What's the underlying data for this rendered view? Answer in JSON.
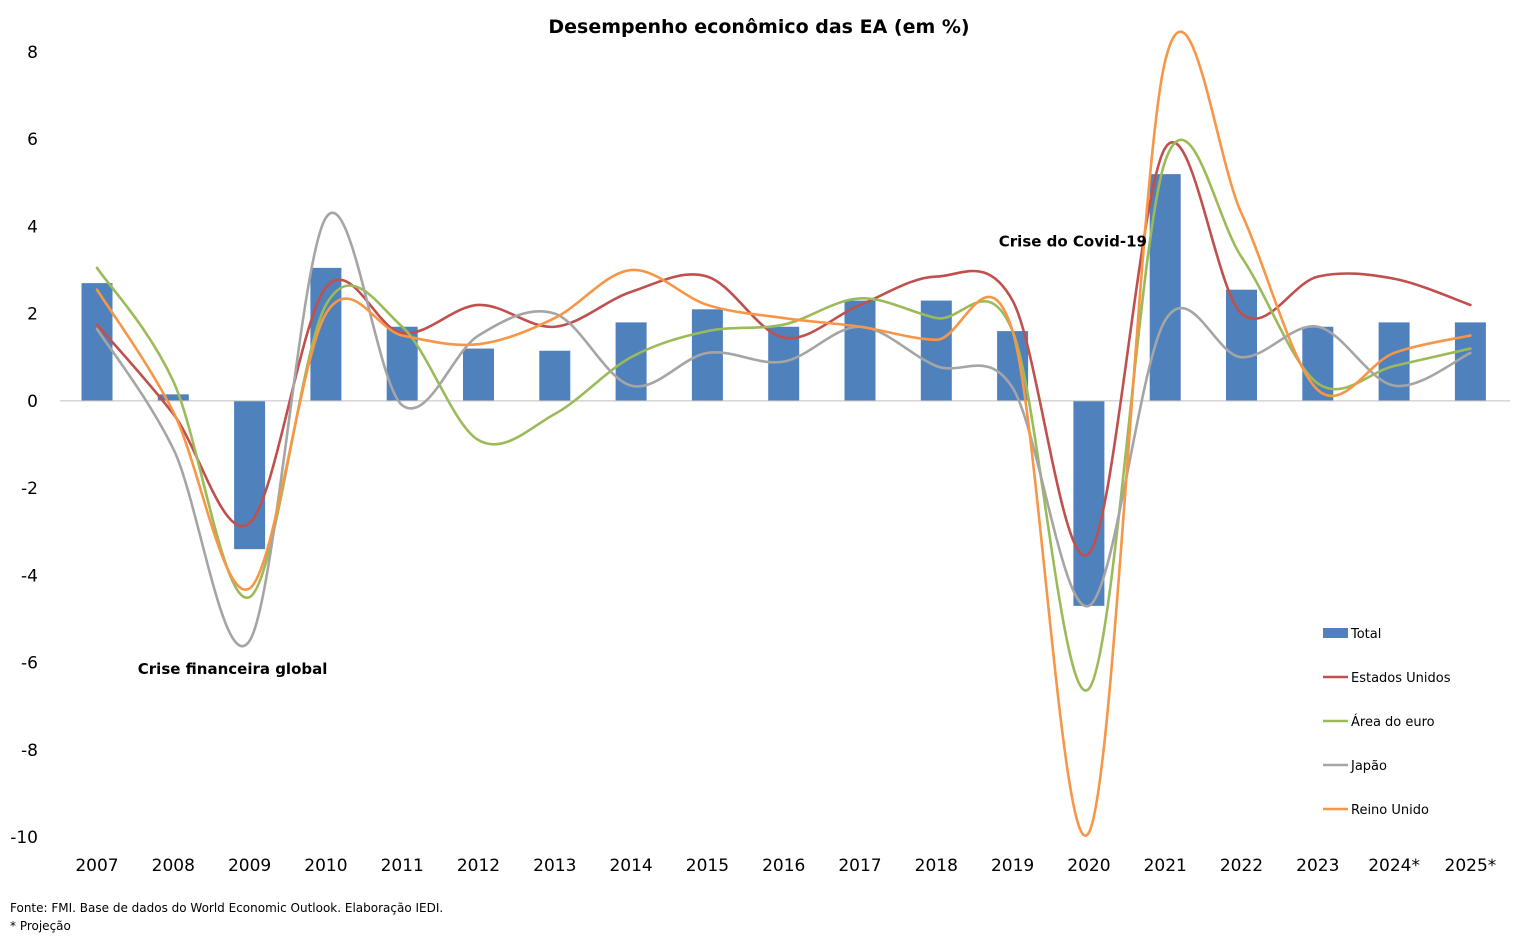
{
  "chart_data": {
    "type": "bar",
    "title": "Desempenho econômico das EA (em %)",
    "categories": [
      "2007",
      "2008",
      "2009",
      "2010",
      "2011",
      "2012",
      "2013",
      "2014",
      "2015",
      "2016",
      "2017",
      "2018",
      "2019",
      "2020",
      "2021",
      "2022",
      "2023",
      "2024*",
      "2025*"
    ],
    "ylim": [
      -10,
      8
    ],
    "yticks": [
      8,
      6,
      4,
      2,
      0,
      -2,
      -4,
      -6,
      -8,
      -10
    ],
    "grid": false,
    "legend_position": "right",
    "series": [
      {
        "name": "Total",
        "type": "bar",
        "color": "#4F81BD",
        "values": [
          2.7,
          0.15,
          -3.4,
          3.05,
          1.7,
          1.2,
          1.15,
          1.8,
          2.1,
          1.7,
          2.3,
          2.3,
          1.6,
          -4.7,
          5.2,
          2.55,
          1.7,
          1.8,
          1.8
        ]
      },
      {
        "name": "Estados Unidos",
        "type": "line",
        "color": "#C0504D",
        "values": [
          1.75,
          -0.3,
          -2.8,
          2.6,
          1.55,
          2.2,
          1.7,
          2.5,
          2.85,
          1.45,
          2.2,
          2.85,
          2.3,
          -3.5,
          5.8,
          2.0,
          2.85,
          2.8,
          2.2
        ]
      },
      {
        "name": "Área do euro",
        "type": "line",
        "color": "#9BBB59",
        "values": [
          3.05,
          0.45,
          -4.5,
          2.2,
          1.7,
          -0.9,
          -0.3,
          1.0,
          1.6,
          1.75,
          2.35,
          1.9,
          1.6,
          -6.6,
          5.5,
          3.3,
          0.4,
          0.8,
          1.2
        ]
      },
      {
        "name": "Japão",
        "type": "line",
        "color": "#A5A5A5",
        "values": [
          1.65,
          -1.1,
          -5.5,
          4.2,
          -0.1,
          1.5,
          2.0,
          0.35,
          1.1,
          0.9,
          1.7,
          0.8,
          0.3,
          -4.7,
          1.85,
          1.0,
          1.7,
          0.35,
          1.1
        ]
      },
      {
        "name": "Reino Unido",
        "type": "line",
        "color": "#F79646",
        "values": [
          2.55,
          -0.25,
          -4.3,
          2.0,
          1.5,
          1.3,
          1.9,
          3.0,
          2.2,
          1.9,
          1.7,
          1.4,
          1.6,
          -9.9,
          7.8,
          4.3,
          0.25,
          1.1,
          1.5
        ]
      }
    ],
    "annotations": [
      {
        "text": "Crise financeira global",
        "category": "2009",
        "value": -6.15
      },
      {
        "text": "Crise do Covid-19",
        "category": "2020",
        "value": 3.65
      }
    ]
  },
  "footer": {
    "source": "Fonte: FMI. Base de dados do World Economic Outlook. Elaboração IEDI.",
    "note": "* Projeção"
  }
}
